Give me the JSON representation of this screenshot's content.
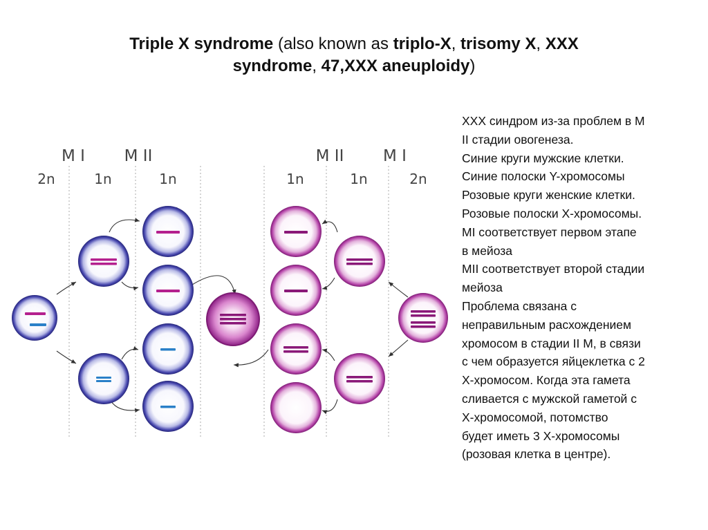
{
  "title": {
    "parts": [
      {
        "text": "Triple X syndrome",
        "bold": true
      },
      {
        "text": " (also known as ",
        "bold": false
      },
      {
        "text": "triplo-X",
        "bold": true
      },
      {
        "text": ", ",
        "bold": false
      },
      {
        "text": "trisomy X",
        "bold": true
      },
      {
        "text": ", ",
        "bold": false
      },
      {
        "text": "XXX",
        "bold": true
      },
      {
        "text": "\n",
        "bold": false
      },
      {
        "text": "syndrome",
        "bold": true
      },
      {
        "text": ", ",
        "bold": false
      },
      {
        "text": "47,XXX aneuploidy",
        "bold": true
      },
      {
        "text": ")",
        "bold": false
      }
    ]
  },
  "diagram": {
    "male_side": {
      "stage_labels": [
        "M I",
        "M II"
      ],
      "ploidy_labels": [
        "2n",
        "1n",
        "1n"
      ]
    },
    "female_side": {
      "stage_labels": [
        "M II",
        "M I"
      ],
      "ploidy_labels": [
        "1n",
        "1n",
        "2n"
      ]
    },
    "colors": {
      "male_cell": "#2f2f8f",
      "female_cell": "#a0309a",
      "x_chromosome": "#b4208e",
      "y_chromosome": "#2a80c8"
    }
  },
  "description": {
    "lines": [
      "XXX синдром из-за проблем в M",
      "II стадии овогенеза.",
      "Синие круги мужские клетки.",
      "Синие полоски Y-хромосомы",
      "Розовые круги женские клетки.",
      "Розовые полоски X-хромосомы.",
      "MI соответствует первом этапе",
      "в мейоза",
      "MII соответствует второй стадии",
      "мейоза",
      "Проблема связана с",
      "неправильным расхождением",
      "хромосом в стадии II M,  в связи",
      "с чем образуется яйцеклетка с 2",
      "X-хромосом. Когда эта гамета",
      "сливается с мужской гаметой с",
      "X-хромосомой,  потомство",
      "будет иметь 3 X-хромосомы",
      "(розовая клетка в центре)."
    ]
  }
}
